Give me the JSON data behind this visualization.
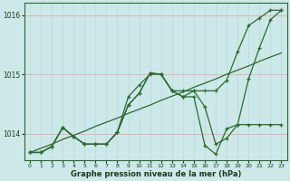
{
  "xlabel": "Graphe pression niveau de la mer (hPa)",
  "x": [
    0,
    1,
    2,
    3,
    4,
    5,
    6,
    7,
    8,
    9,
    10,
    11,
    12,
    13,
    14,
    15,
    16,
    17,
    18,
    19,
    20,
    21,
    22,
    23
  ],
  "line_high": [
    1013.68,
    1013.68,
    1013.78,
    1014.1,
    1013.95,
    1013.82,
    1013.82,
    1013.82,
    1014.02,
    1014.62,
    1014.82,
    1015.0,
    1015.0,
    1014.72,
    1014.72,
    1014.72,
    1014.72,
    1014.72,
    1014.9,
    1015.38,
    1015.82,
    1015.95,
    1016.08,
    1016.08
  ],
  "line_mid": [
    1013.68,
    1013.68,
    1013.78,
    1014.1,
    1013.95,
    1013.82,
    1013.82,
    1013.82,
    1014.02,
    1014.48,
    1014.68,
    1015.02,
    1015.0,
    1014.72,
    1014.62,
    1014.72,
    1014.45,
    1013.82,
    1013.92,
    1014.15,
    1014.92,
    1015.45,
    1015.92,
    1016.08
  ],
  "line_low": [
    1013.68,
    1013.68,
    1013.78,
    1014.1,
    1013.95,
    1013.82,
    1013.82,
    1013.82,
    1014.02,
    1014.48,
    1014.68,
    1015.02,
    1015.0,
    1014.72,
    1014.62,
    1014.62,
    1013.8,
    1013.65,
    1014.08,
    1014.15,
    1014.15,
    1014.15,
    1014.15,
    1014.15
  ],
  "line_trend": [
    1013.68,
    1013.75,
    1013.82,
    1013.9,
    1013.97,
    1014.04,
    1014.12,
    1014.19,
    1014.26,
    1014.34,
    1014.41,
    1014.48,
    1014.56,
    1014.63,
    1014.7,
    1014.78,
    1014.85,
    1014.92,
    1015.0,
    1015.07,
    1015.14,
    1015.22,
    1015.29,
    1015.36
  ],
  "line_color": "#2d6a2d",
  "bg_color": "#cce8e8",
  "grid_color_v": "#b8d8d8",
  "grid_color_h": "#f0a0a0",
  "ylim_min": 1013.55,
  "ylim_max": 1016.2,
  "yticks": [
    1014,
    1015,
    1016
  ],
  "xticks": [
    0,
    1,
    2,
    3,
    4,
    5,
    6,
    7,
    8,
    9,
    10,
    11,
    12,
    13,
    14,
    15,
    16,
    17,
    18,
    19,
    20,
    21,
    22,
    23
  ]
}
